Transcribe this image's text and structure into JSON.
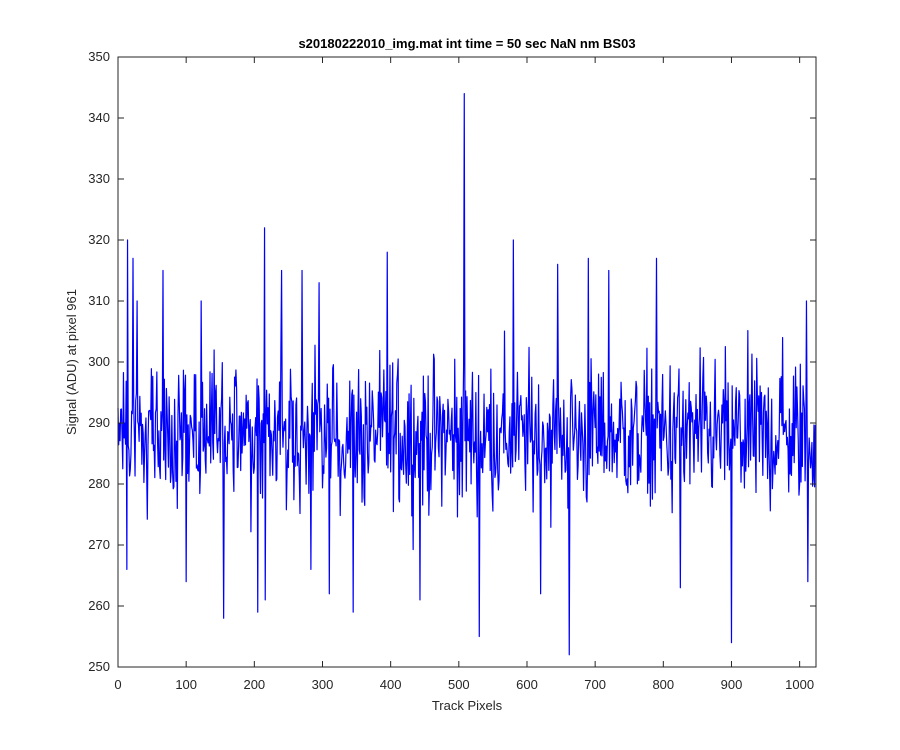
{
  "chart_data": {
    "type": "line",
    "title": "s20180222010_img.mat int time = 50 sec  NaN nm BS03",
    "xlabel": "Track Pixels",
    "ylabel": "Signal (ADU) at pixel 961",
    "xlim": [
      0,
      1024
    ],
    "ylim": [
      250,
      350
    ],
    "xticks": [
      0,
      100,
      200,
      300,
      400,
      500,
      600,
      700,
      800,
      900,
      1000
    ],
    "yticks": [
      250,
      260,
      270,
      280,
      290,
      300,
      310,
      320,
      330,
      340,
      350
    ],
    "grid": false,
    "legend": "none",
    "series": [
      {
        "color": "#0000ff",
        "baseline_mean": 288,
        "baseline_spread": 8,
        "x_step": 1,
        "n_points": 1024,
        "notable_points": [
          {
            "x": 13,
            "y": 266
          },
          {
            "x": 14,
            "y": 320
          },
          {
            "x": 22,
            "y": 317
          },
          {
            "x": 28,
            "y": 310
          },
          {
            "x": 66,
            "y": 315
          },
          {
            "x": 100,
            "y": 264
          },
          {
            "x": 122,
            "y": 310
          },
          {
            "x": 155,
            "y": 258
          },
          {
            "x": 205,
            "y": 259
          },
          {
            "x": 215,
            "y": 322
          },
          {
            "x": 216,
            "y": 261
          },
          {
            "x": 240,
            "y": 315
          },
          {
            "x": 270,
            "y": 315
          },
          {
            "x": 283,
            "y": 266
          },
          {
            "x": 295,
            "y": 313
          },
          {
            "x": 310,
            "y": 262
          },
          {
            "x": 345,
            "y": 259
          },
          {
            "x": 395,
            "y": 318
          },
          {
            "x": 443,
            "y": 261
          },
          {
            "x": 508,
            "y": 344
          },
          {
            "x": 530,
            "y": 255
          },
          {
            "x": 580,
            "y": 320
          },
          {
            "x": 620,
            "y": 262
          },
          {
            "x": 645,
            "y": 316
          },
          {
            "x": 662,
            "y": 252
          },
          {
            "x": 690,
            "y": 317
          },
          {
            "x": 720,
            "y": 315
          },
          {
            "x": 790,
            "y": 317
          },
          {
            "x": 825,
            "y": 263
          },
          {
            "x": 900,
            "y": 254
          },
          {
            "x": 975,
            "y": 304
          },
          {
            "x": 1010,
            "y": 310
          },
          {
            "x": 1012,
            "y": 264
          }
        ]
      }
    ]
  }
}
